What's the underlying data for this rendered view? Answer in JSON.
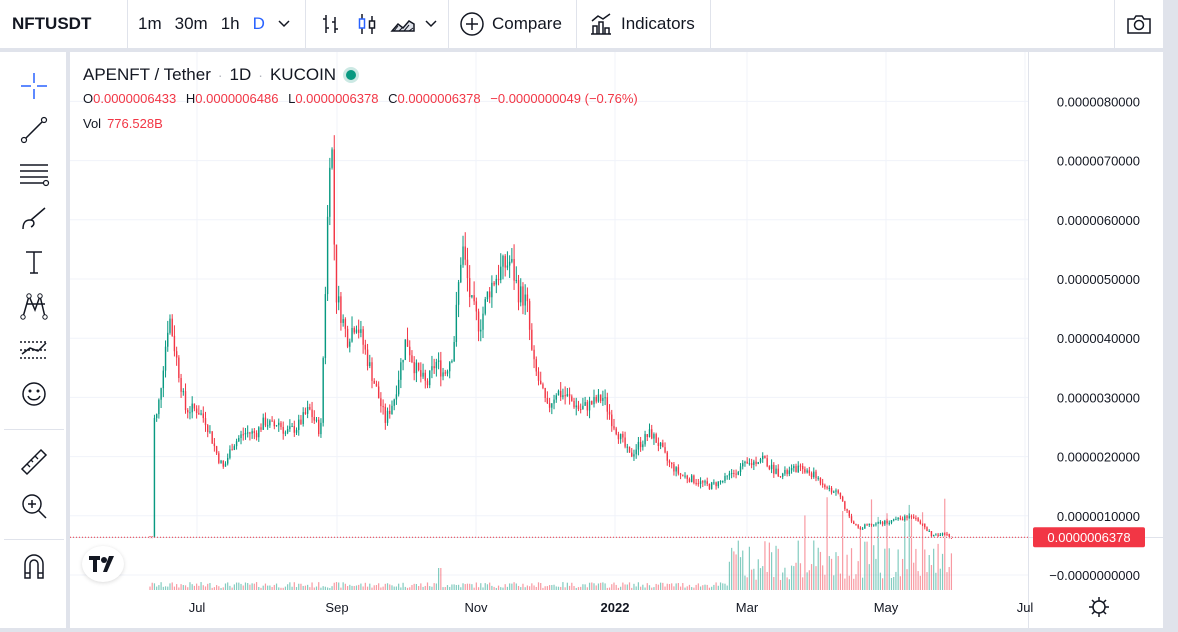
{
  "toolbar": {
    "symbol": "NFTUSDT",
    "intervals": [
      "1m",
      "30m",
      "1h",
      "D"
    ],
    "active_interval": "D",
    "compare_label": "Compare",
    "indicators_label": "Indicators"
  },
  "left_tools": [
    "crosshair-icon",
    "trend-line-icon",
    "fib-icon",
    "brush-icon",
    "text-icon",
    "pattern-icon",
    "forecast-icon",
    "emoji-icon",
    "ruler-icon",
    "zoom-in-icon",
    "magnet-icon"
  ],
  "legend": {
    "name": "APENFT / Tether",
    "interval": "1D",
    "exchange": "KUCOIN",
    "o_label": "O",
    "o": "0.0000006433",
    "h_label": "H",
    "h": "0.0000006486",
    "l_label": "L",
    "l": "0.0000006378",
    "c_label": "C",
    "c": "0.0000006378",
    "change": "−0.0000000049 (−0.76%)",
    "vol_label": "Vol",
    "vol": "776.528B"
  },
  "colors": {
    "up": "#089981",
    "down": "#f23645",
    "accent": "#2962ff"
  },
  "chart_data": {
    "type": "candlestick",
    "price_axis_labels": [
      "0.0000080000",
      "0.0000070000",
      "0.0000060000",
      "0.0000050000",
      "0.0000040000",
      "0.0000030000",
      "0.0000020000",
      "0.0000010000",
      "−0.0000000000"
    ],
    "ylim": [
      -0.0,
      8e-06
    ],
    "time_axis_labels": [
      "Jul",
      "Sep",
      "Nov",
      "2022",
      "Mar",
      "May",
      "Jul"
    ],
    "current_price_label": "0.0000006378",
    "series": [
      {
        "name": "Price",
        "points": [
          [
            0.2,
            2.6
          ],
          [
            0.5,
            2.7
          ],
          [
            1.3,
            4.4
          ],
          [
            1.7,
            3.8
          ],
          [
            2.4,
            2.8
          ],
          [
            3.2,
            2.8
          ],
          [
            3.8,
            2.6
          ],
          [
            4.6,
            2.0
          ],
          [
            5.0,
            1.8
          ],
          [
            5.6,
            2.2
          ],
          [
            6.4,
            2.4
          ],
          [
            7.2,
            2.4
          ],
          [
            7.8,
            2.6
          ],
          [
            8.4,
            2.5
          ],
          [
            8.7,
            2.6
          ],
          [
            9.2,
            2.4
          ],
          [
            10.0,
            2.5
          ],
          [
            10.8,
            2.8
          ],
          [
            11.6,
            2.4
          ],
          [
            12.0,
            5.5
          ],
          [
            12.3,
            7.8
          ],
          [
            12.6,
            4.8
          ],
          [
            13.4,
            4.0
          ],
          [
            14.0,
            4.3
          ],
          [
            14.6,
            3.8
          ],
          [
            15.3,
            3.2
          ],
          [
            16.0,
            2.6
          ],
          [
            16.6,
            3.0
          ],
          [
            17.4,
            4.0
          ],
          [
            18.0,
            3.5
          ],
          [
            18.8,
            3.2
          ],
          [
            19.4,
            3.6
          ],
          [
            20.0,
            3.4
          ],
          [
            20.6,
            3.8
          ],
          [
            21.2,
            5.6
          ],
          [
            21.8,
            4.6
          ],
          [
            22.4,
            4.2
          ],
          [
            23.0,
            4.8
          ],
          [
            23.4,
            5.0
          ],
          [
            24.0,
            5.2
          ],
          [
            24.5,
            5.3
          ],
          [
            25.0,
            4.8
          ],
          [
            25.6,
            4.6
          ],
          [
            26.0,
            3.6
          ],
          [
            26.5,
            3.2
          ],
          [
            27.0,
            2.8
          ],
          [
            27.6,
            3.1
          ],
          [
            28.4,
            3.0
          ],
          [
            29.2,
            2.8
          ],
          [
            30.0,
            2.9
          ],
          [
            30.8,
            3.0
          ],
          [
            31.4,
            2.6
          ],
          [
            32.0,
            2.3
          ],
          [
            32.6,
            2.0
          ],
          [
            33.2,
            2.2
          ],
          [
            34.0,
            2.4
          ],
          [
            34.6,
            2.2
          ],
          [
            35.2,
            1.9
          ],
          [
            36.0,
            1.7
          ],
          [
            37.0,
            1.6
          ],
          [
            38.0,
            1.5
          ],
          [
            39.0,
            1.6
          ],
          [
            40.0,
            1.8
          ],
          [
            41.0,
            1.9
          ],
          [
            41.6,
            2.0
          ],
          [
            42.2,
            1.8
          ],
          [
            43.0,
            1.7
          ],
          [
            44.0,
            1.8
          ],
          [
            45.0,
            1.7
          ],
          [
            46.0,
            1.5
          ],
          [
            47.0,
            1.3
          ],
          [
            47.6,
            0.9
          ],
          [
            48.2,
            0.8
          ],
          [
            49.0,
            0.85
          ],
          [
            50.0,
            0.9
          ],
          [
            51.0,
            0.95
          ],
          [
            52.0,
            1.0
          ],
          [
            52.6,
            0.8
          ],
          [
            53.2,
            0.65
          ],
          [
            54.0,
            0.7
          ],
          [
            54.6,
            0.64
          ]
        ]
      }
    ]
  }
}
